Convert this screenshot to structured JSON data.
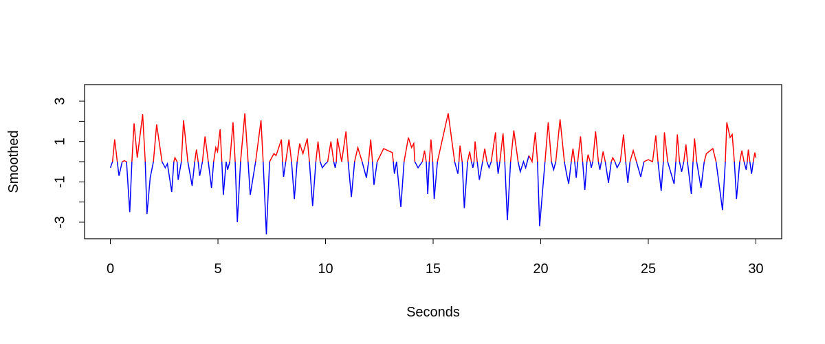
{
  "chart_data": {
    "type": "line",
    "x_label": "Seconds",
    "y_label": "Smoothed",
    "xlim": [
      -1.2,
      31.2
    ],
    "ylim": [
      -3.82,
      3.82
    ],
    "xticks": [
      0,
      5,
      10,
      15,
      20,
      25,
      30
    ],
    "yticks": [
      -3,
      -1,
      1,
      3
    ],
    "yminor_ticks": [
      -2,
      0,
      2
    ],
    "color_above": "#ff0000",
    "color_below": "#0000ff",
    "x": [
      0.0,
      0.1,
      0.2,
      0.32,
      0.4,
      0.55,
      0.65,
      0.75,
      0.9,
      1.0,
      1.1,
      1.25,
      1.5,
      1.62,
      1.7,
      1.85,
      2.0,
      2.15,
      2.4,
      2.55,
      2.65,
      2.85,
      2.95,
      3.0,
      3.1,
      3.15,
      3.3,
      3.4,
      3.6,
      3.8,
      3.92,
      4.0,
      4.08,
      4.15,
      4.28,
      4.4,
      4.55,
      4.7,
      4.8,
      4.9,
      4.98,
      5.1,
      5.18,
      5.25,
      5.38,
      5.45,
      5.55,
      5.7,
      5.8,
      5.9,
      6.05,
      6.25,
      6.4,
      6.5,
      6.75,
      7.0,
      7.1,
      7.25,
      7.4,
      7.6,
      7.7,
      7.95,
      8.0,
      8.05,
      8.15,
      8.3,
      8.42,
      8.55,
      8.68,
      8.8,
      8.95,
      9.15,
      9.25,
      9.4,
      9.55,
      9.65,
      9.75,
      9.85,
      10.0,
      10.1,
      10.25,
      10.38,
      10.45,
      10.5,
      10.55,
      10.75,
      10.95,
      11.05,
      11.2,
      11.35,
      11.5,
      11.7,
      11.9,
      12.0,
      12.1,
      12.18,
      12.25,
      12.4,
      12.7,
      13.1,
      13.15,
      13.2,
      13.3,
      13.5,
      13.65,
      13.85,
      14.0,
      14.1,
      14.15,
      14.3,
      14.5,
      14.6,
      14.68,
      14.75,
      14.82,
      14.9,
      14.98,
      15.05,
      15.2,
      15.7,
      16.0,
      16.15,
      16.2,
      16.25,
      16.35,
      16.45,
      16.6,
      16.7,
      16.78,
      16.85,
      16.9,
      16.95,
      17.05,
      17.15,
      17.3,
      17.4,
      17.5,
      17.6,
      17.7,
      17.9,
      17.97,
      18.02,
      18.1,
      18.25,
      18.33,
      18.45,
      18.6,
      18.75,
      18.95,
      19.05,
      19.2,
      19.3,
      19.45,
      19.6,
      19.75,
      19.85,
      19.95,
      20.2,
      20.35,
      20.5,
      20.6,
      20.7,
      20.9,
      21.1,
      21.2,
      21.3,
      21.42,
      21.5,
      21.58,
      21.65,
      21.72,
      21.85,
      21.95,
      22.05,
      22.15,
      22.2,
      22.3,
      22.35,
      22.42,
      22.55,
      22.68,
      22.75,
      22.82,
      22.9,
      23.0,
      23.15,
      23.28,
      23.35,
      23.45,
      23.55,
      23.7,
      23.85,
      23.95,
      24.05,
      24.15,
      24.3,
      24.45,
      24.65,
      24.8,
      25.0,
      25.2,
      25.35,
      25.45,
      25.6,
      25.7,
      25.75,
      25.9,
      26.2,
      26.28,
      26.35,
      26.45,
      26.55,
      26.65,
      26.75,
      26.82,
      27.0,
      27.08,
      27.15,
      27.25,
      27.45,
      27.6,
      27.7,
      28.0,
      28.15,
      28.45,
      28.58,
      28.65,
      28.8,
      28.9,
      29.0,
      29.1,
      29.25,
      29.35,
      29.45,
      29.55,
      29.6,
      29.65,
      29.72,
      29.8,
      29.88,
      29.95,
      30.0
    ],
    "values": [
      -0.3,
      0,
      1.1,
      0,
      -0.7,
      0,
      0.05,
      0,
      -2.5,
      0,
      1.9,
      0.2,
      2.35,
      0,
      -2.6,
      -0.8,
      0,
      1.85,
      0,
      -0.3,
      -0.1,
      -1.5,
      0,
      0.2,
      0,
      -0.9,
      0,
      2.05,
      0,
      -1.2,
      0,
      0.6,
      0,
      -0.7,
      0,
      1.25,
      0,
      -1.3,
      0,
      0.7,
      0.5,
      1.6,
      0,
      -1.65,
      0,
      -0.4,
      0,
      1.95,
      0,
      -3.0,
      0,
      2.4,
      0,
      -1.65,
      0,
      2.05,
      0,
      -3.6,
      0,
      0.4,
      0.3,
      1.1,
      0,
      -0.75,
      0,
      1.1,
      0,
      -1.85,
      0,
      0.9,
      0.4,
      1.15,
      0,
      -2.2,
      0,
      1.0,
      0,
      -0.3,
      -0.1,
      0,
      1.0,
      0,
      -0.3,
      0,
      1.15,
      0,
      1.5,
      0,
      -1.75,
      0,
      0.7,
      0,
      -0.8,
      0,
      1.1,
      0,
      -1.15,
      0,
      0.65,
      0.45,
      0,
      -0.6,
      0,
      -2.25,
      0,
      1.2,
      0.7,
      0.9,
      0,
      -0.3,
      0,
      0.55,
      0,
      -1.6,
      0,
      1.1,
      0,
      -1.85,
      0,
      2.4,
      0,
      -0.6,
      0,
      0.8,
      0,
      -2.3,
      0,
      0.5,
      0,
      -0.3,
      0,
      1.0,
      0,
      -0.9,
      0,
      0.65,
      0,
      -0.3,
      0,
      1.45,
      0,
      -0.6,
      0,
      1.4,
      0,
      -2.9,
      0,
      1.55,
      0,
      -0.5,
      0,
      -0.3,
      0.3,
      0,
      1.45,
      0,
      -3.2,
      0,
      1.95,
      0,
      -0.4,
      0,
      2.1,
      0,
      -0.6,
      -1.1,
      0,
      0.65,
      0,
      -0.8,
      0,
      1.25,
      0,
      -1.4,
      0,
      0.35,
      0,
      -0.3,
      0,
      1.5,
      0,
      -0.4,
      0,
      0.5,
      0,
      -1.05,
      0,
      0.2,
      0,
      -0.3,
      0,
      1.35,
      0,
      -1.05,
      0,
      0.55,
      0,
      -0.75,
      0,
      0.1,
      0,
      1.3,
      0,
      -1.45,
      0,
      1.45,
      0,
      -1.1,
      0,
      1.35,
      0,
      -0.5,
      0,
      0.85,
      0,
      -1.6,
      0,
      1.15,
      0,
      -1.3,
      0,
      0.4,
      0.65,
      0,
      -2.4,
      0,
      1.95,
      1.2,
      1.35,
      0,
      -1.85,
      0,
      0.55,
      0,
      -0.4,
      0,
      0.6,
      0,
      -0.6,
      0,
      0.45,
      0.2
    ]
  }
}
